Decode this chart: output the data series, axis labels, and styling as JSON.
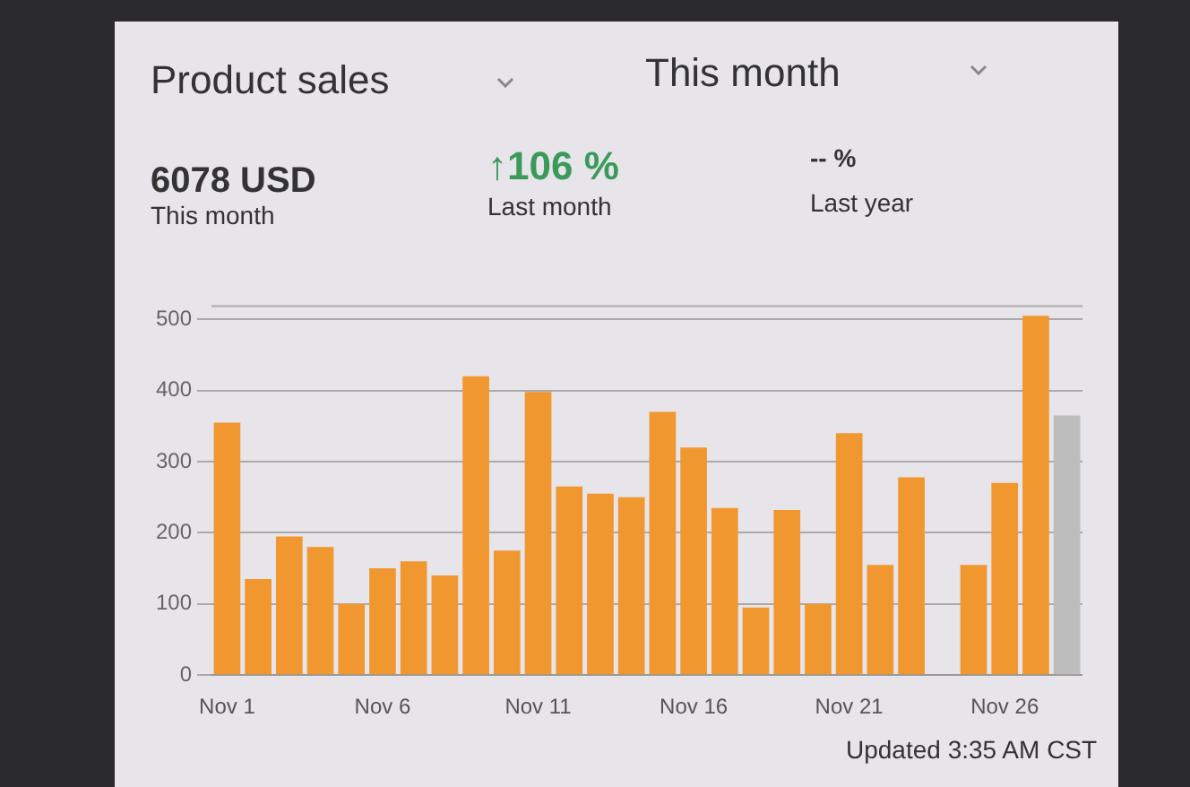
{
  "chart_data": {
    "type": "bar",
    "title": "Product sales",
    "subtitle": "This month",
    "annotations": [
      "6078 USD",
      "This month",
      "↑106 %",
      "Last month",
      "-- %",
      "Last year",
      "Updated 3:35 AM CST"
    ],
    "categories": [
      "Nov 1",
      null,
      null,
      null,
      null,
      "Nov 6",
      null,
      null,
      null,
      null,
      "Nov 11",
      null,
      null,
      null,
      null,
      "Nov 16",
      null,
      null,
      null,
      null,
      "Nov 21",
      null,
      null,
      null,
      null,
      "Nov 26",
      null,
      null
    ],
    "values": [
      355,
      135,
      195,
      180,
      100,
      150,
      160,
      140,
      420,
      175,
      398,
      265,
      255,
      250,
      370,
      320,
      235,
      95,
      232,
      100,
      340,
      155,
      278,
      0,
      155,
      270,
      505,
      365
    ],
    "colors": [
      "#f0982f",
      "#f0982f",
      "#f0982f",
      "#f0982f",
      "#f0982f",
      "#f0982f",
      "#f0982f",
      "#f0982f",
      "#f0982f",
      "#f0982f",
      "#f0982f",
      "#f0982f",
      "#f0982f",
      "#f0982f",
      "#f0982f",
      "#f0982f",
      "#f0982f",
      "#f0982f",
      "#f0982f",
      "#f0982f",
      "#f0982f",
      "#f0982f",
      "#f0982f",
      "#f0982f",
      "#f0982f",
      "#f0982f",
      "#f0982f",
      "#bdbdbd"
    ],
    "ylim": [
      0,
      520
    ],
    "yticks": [
      0,
      100,
      200,
      300,
      400,
      500
    ],
    "grid": "y",
    "legend": false
  }
}
